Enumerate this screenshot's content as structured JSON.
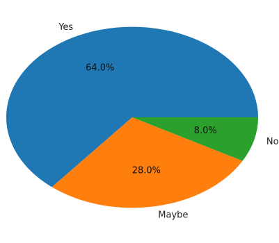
{
  "chart_data": {
    "type": "pie",
    "categories": [
      "Yes",
      "Maybe",
      "No"
    ],
    "values": [
      64.0,
      28.0,
      8.0
    ],
    "percent_labels": [
      "64.0%",
      "28.0%",
      "8.0%"
    ],
    "colors": [
      "#1f77b4",
      "#ff7f0e",
      "#2ca02c"
    ],
    "title": "",
    "legend": "none"
  }
}
